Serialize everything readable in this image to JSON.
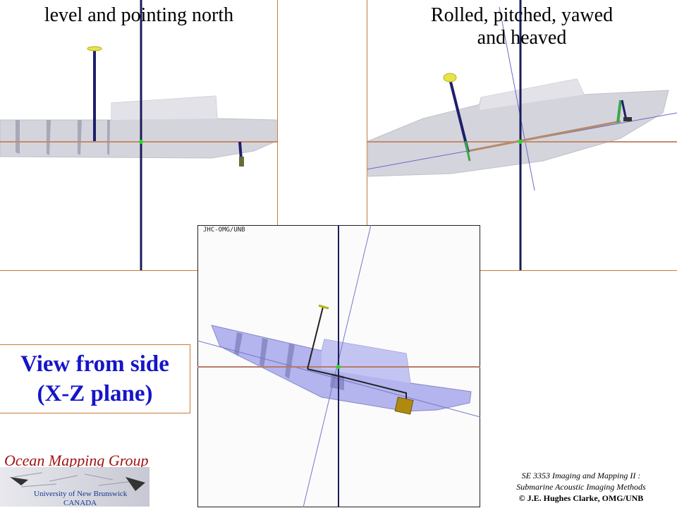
{
  "captions": {
    "left": "level and pointing north",
    "right_line1": "Rolled, pitched, yawed",
    "right_line2": "and heaved"
  },
  "view_box": {
    "line1": "View from side",
    "line2": "(X-Z plane)"
  },
  "render_tag": "JHC-OMG/UNB",
  "logo": {
    "title": "Ocean Mapping Group",
    "university": "University of New Brunswick",
    "country": "CANADA"
  },
  "credits": {
    "line1": "SE 3353 Imaging and Mapping II :",
    "line2": "Submarine Acoustic Imaging Methods",
    "line3": "© J.E. Hughes Clarke, OMG/UNB"
  },
  "colors": {
    "hull": "#c9c9d6",
    "hull_blue": "#a6a6ea",
    "axis_vertical": "#1c1c5a",
    "axis_horizontal": "#c58a6a",
    "frame_border": "#c87a3a",
    "caption_blue": "#1515c8",
    "logo_red": "#a11212"
  }
}
